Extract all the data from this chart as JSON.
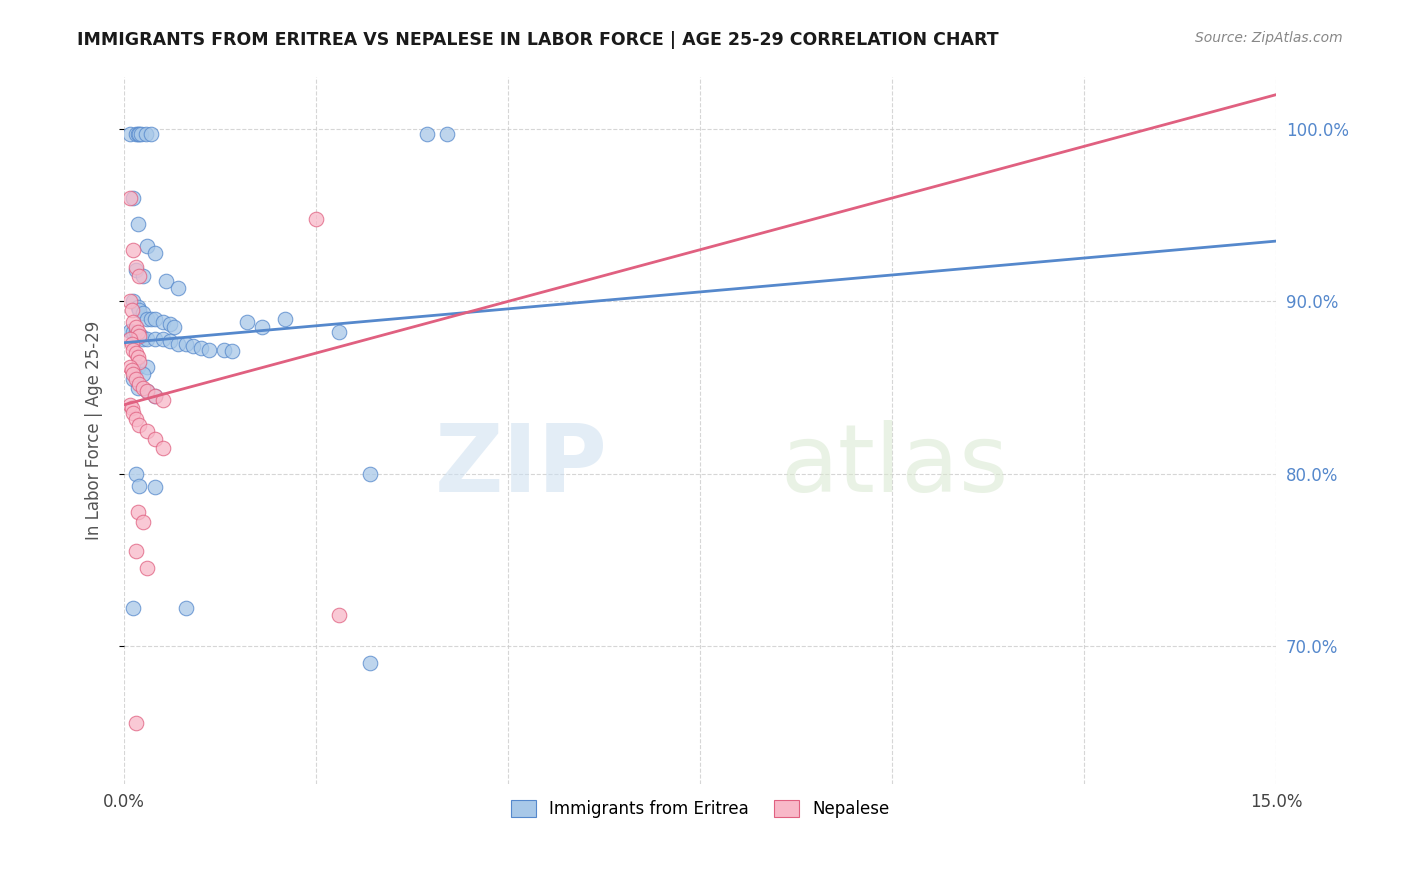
{
  "title": "IMMIGRANTS FROM ERITREA VS NEPALESE IN LABOR FORCE | AGE 25-29 CORRELATION CHART",
  "source": "Source: ZipAtlas.com",
  "ylabel": "In Labor Force | Age 25-29",
  "watermark_zip": "ZIP",
  "watermark_atlas": "atlas",
  "xlim": [
    0.0,
    0.15
  ],
  "ylim": [
    0.62,
    1.03
  ],
  "yticks": [
    0.7,
    0.8,
    0.9,
    1.0
  ],
  "ytick_labels": [
    "70.0%",
    "80.0%",
    "90.0%",
    "100.0%"
  ],
  "xtick_positions": [
    0.0,
    0.025,
    0.05,
    0.075,
    0.1,
    0.125,
    0.15
  ],
  "xtick_labels": [
    "0.0%",
    "",
    "",
    "",
    "",
    "",
    "15.0%"
  ],
  "blue_fill": "#a8c8e8",
  "blue_edge": "#5588cc",
  "pink_fill": "#f8b8c8",
  "pink_edge": "#e06080",
  "blue_line": "#5588cc",
  "pink_line": "#e06080",
  "blue_points": [
    [
      0.0008,
      0.997
    ],
    [
      0.0015,
      0.997
    ],
    [
      0.0018,
      0.997
    ],
    [
      0.002,
      0.997
    ],
    [
      0.0022,
      0.997
    ],
    [
      0.0028,
      0.997
    ],
    [
      0.0035,
      0.997
    ],
    [
      0.0395,
      0.997
    ],
    [
      0.042,
      0.997
    ],
    [
      0.0012,
      0.96
    ],
    [
      0.0018,
      0.945
    ],
    [
      0.003,
      0.932
    ],
    [
      0.004,
      0.928
    ],
    [
      0.0015,
      0.918
    ],
    [
      0.0025,
      0.915
    ],
    [
      0.0055,
      0.912
    ],
    [
      0.007,
      0.908
    ],
    [
      0.0012,
      0.9
    ],
    [
      0.0018,
      0.897
    ],
    [
      0.002,
      0.895
    ],
    [
      0.0025,
      0.893
    ],
    [
      0.003,
      0.89
    ],
    [
      0.0035,
      0.89
    ],
    [
      0.004,
      0.89
    ],
    [
      0.005,
      0.888
    ],
    [
      0.006,
      0.887
    ],
    [
      0.0065,
      0.885
    ],
    [
      0.0008,
      0.883
    ],
    [
      0.0012,
      0.882
    ],
    [
      0.0015,
      0.882
    ],
    [
      0.0018,
      0.88
    ],
    [
      0.002,
      0.88
    ],
    [
      0.0022,
      0.88
    ],
    [
      0.0025,
      0.878
    ],
    [
      0.003,
      0.878
    ],
    [
      0.004,
      0.878
    ],
    [
      0.005,
      0.878
    ],
    [
      0.006,
      0.877
    ],
    [
      0.007,
      0.875
    ],
    [
      0.008,
      0.875
    ],
    [
      0.009,
      0.874
    ],
    [
      0.01,
      0.873
    ],
    [
      0.011,
      0.872
    ],
    [
      0.013,
      0.872
    ],
    [
      0.014,
      0.871
    ],
    [
      0.016,
      0.888
    ],
    [
      0.018,
      0.885
    ],
    [
      0.021,
      0.89
    ],
    [
      0.028,
      0.882
    ],
    [
      0.0018,
      0.862
    ],
    [
      0.003,
      0.862
    ],
    [
      0.0025,
      0.858
    ],
    [
      0.0012,
      0.855
    ],
    [
      0.0018,
      0.85
    ],
    [
      0.003,
      0.848
    ],
    [
      0.004,
      0.845
    ],
    [
      0.0015,
      0.8
    ],
    [
      0.002,
      0.793
    ],
    [
      0.004,
      0.792
    ],
    [
      0.032,
      0.8
    ],
    [
      0.0012,
      0.722
    ],
    [
      0.008,
      0.722
    ],
    [
      0.032,
      0.69
    ]
  ],
  "pink_points": [
    [
      0.0008,
      0.96
    ],
    [
      0.0012,
      0.93
    ],
    [
      0.0015,
      0.92
    ],
    [
      0.002,
      0.915
    ],
    [
      0.0008,
      0.9
    ],
    [
      0.001,
      0.895
    ],
    [
      0.0012,
      0.888
    ],
    [
      0.0015,
      0.885
    ],
    [
      0.0018,
      0.882
    ],
    [
      0.002,
      0.88
    ],
    [
      0.0008,
      0.878
    ],
    [
      0.001,
      0.875
    ],
    [
      0.0012,
      0.872
    ],
    [
      0.0015,
      0.87
    ],
    [
      0.0018,
      0.868
    ],
    [
      0.002,
      0.865
    ],
    [
      0.0008,
      0.862
    ],
    [
      0.001,
      0.86
    ],
    [
      0.0012,
      0.858
    ],
    [
      0.0015,
      0.855
    ],
    [
      0.002,
      0.852
    ],
    [
      0.0025,
      0.85
    ],
    [
      0.003,
      0.848
    ],
    [
      0.004,
      0.845
    ],
    [
      0.005,
      0.843
    ],
    [
      0.0008,
      0.84
    ],
    [
      0.001,
      0.838
    ],
    [
      0.0012,
      0.835
    ],
    [
      0.0015,
      0.832
    ],
    [
      0.002,
      0.828
    ],
    [
      0.003,
      0.825
    ],
    [
      0.004,
      0.82
    ],
    [
      0.005,
      0.815
    ],
    [
      0.025,
      0.948
    ],
    [
      0.0018,
      0.778
    ],
    [
      0.0025,
      0.772
    ],
    [
      0.028,
      0.718
    ],
    [
      0.0015,
      0.755
    ],
    [
      0.003,
      0.745
    ],
    [
      0.0015,
      0.655
    ]
  ]
}
